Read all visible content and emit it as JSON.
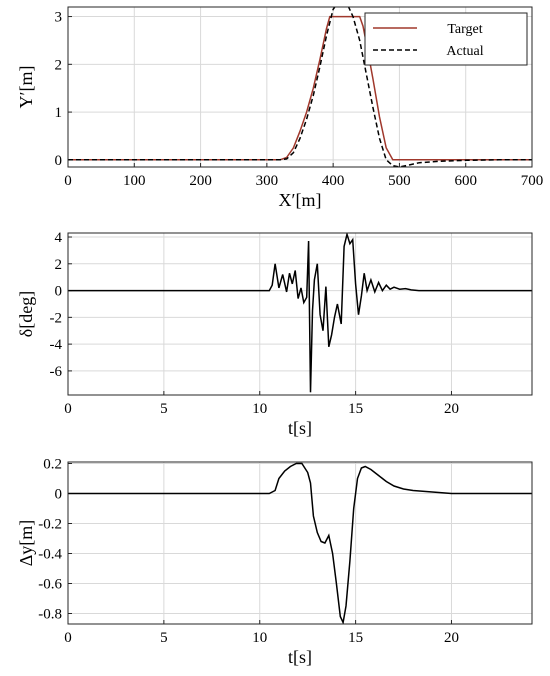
{
  "chart_data": [
    {
      "type": "line",
      "xlabel": "X′[m]",
      "ylabel": "Y′[m]",
      "xlim": [
        0,
        700
      ],
      "ylim": [
        -0.15,
        3.2
      ],
      "xticks": [
        "0",
        "100",
        "200",
        "300",
        "400",
        "500",
        "600",
        "700"
      ],
      "yticks": [
        "0",
        "1",
        "2",
        "3"
      ],
      "grid": true,
      "legend": "top-right",
      "series": [
        {
          "name": "Target",
          "color": "#a0382c",
          "style": "solid",
          "x": [
            0,
            320,
            330,
            340,
            350,
            360,
            370,
            380,
            390,
            395,
            440,
            445,
            450,
            460,
            470,
            480,
            490,
            700
          ],
          "y": [
            0,
            0,
            0.05,
            0.25,
            0.6,
            1.0,
            1.5,
            2.1,
            2.75,
            3.0,
            3.0,
            2.8,
            2.45,
            1.7,
            0.9,
            0.25,
            0,
            0
          ]
        },
        {
          "name": "Actual",
          "color": "#000000",
          "style": "dashed",
          "x": [
            0,
            320,
            330,
            340,
            350,
            360,
            370,
            380,
            390,
            400,
            410,
            420,
            430,
            440,
            450,
            460,
            470,
            480,
            490,
            500,
            510,
            530,
            560,
            600,
            650,
            700
          ],
          "y": [
            0,
            0,
            0.02,
            0.15,
            0.45,
            0.85,
            1.35,
            1.95,
            2.6,
            3.15,
            3.35,
            3.3,
            3.0,
            2.5,
            1.8,
            1.1,
            0.45,
            0.0,
            -0.12,
            -0.15,
            -0.12,
            -0.06,
            -0.03,
            -0.01,
            0,
            0
          ]
        }
      ]
    },
    {
      "type": "line",
      "xlabel": "t[s]",
      "ylabel": "δ[deg]",
      "xlim": [
        0,
        24.2
      ],
      "ylim": [
        -7.8,
        4.3
      ],
      "xticks": [
        "0",
        "5",
        "10",
        "15",
        "20"
      ],
      "yticks": [
        "4",
        "2",
        "0",
        "-2",
        "-4",
        "-6"
      ],
      "grid": true,
      "series": [
        {
          "color": "#000000",
          "style": "solid",
          "x": [
            0,
            10.5,
            10.65,
            10.8,
            11.0,
            11.2,
            11.4,
            11.55,
            11.7,
            11.85,
            12.0,
            12.15,
            12.3,
            12.45,
            12.55,
            12.65,
            12.75,
            12.85,
            13.0,
            13.15,
            13.3,
            13.45,
            13.6,
            13.75,
            13.9,
            14.05,
            14.25,
            14.4,
            14.55,
            14.7,
            14.85,
            15.0,
            15.15,
            15.3,
            15.45,
            15.6,
            15.8,
            16.0,
            16.2,
            16.4,
            16.6,
            16.8,
            17.0,
            17.3,
            17.6,
            17.9,
            18.3,
            24.2
          ],
          "y": [
            0,
            0,
            0.4,
            2.0,
            0.2,
            1.2,
            -0.1,
            1.3,
            0.5,
            1.5,
            -0.6,
            0.2,
            -0.9,
            -0.5,
            3.7,
            -7.6,
            -1.5,
            0.8,
            2.0,
            -1.8,
            -3.0,
            0.3,
            -4.2,
            -3.3,
            -2.0,
            -1.0,
            -2.5,
            3.3,
            4.2,
            3.5,
            3.8,
            0.5,
            -1.8,
            -0.4,
            1.3,
            0.0,
            0.8,
            -0.1,
            0.6,
            0.0,
            0.4,
            0.1,
            0.25,
            0.1,
            0.15,
            0.05,
            0,
            0
          ]
        }
      ]
    },
    {
      "type": "line",
      "xlabel": "t[s]",
      "ylabel": "Δy[m]",
      "xlim": [
        0,
        24.2
      ],
      "ylim": [
        -0.87,
        0.21
      ],
      "xticks": [
        "0",
        "5",
        "10",
        "15",
        "20"
      ],
      "yticks": [
        "0.2",
        "0",
        "-0.2",
        "-0.4",
        "-0.6",
        "-0.8"
      ],
      "grid": true,
      "series": [
        {
          "color": "#000000",
          "style": "solid",
          "x": [
            0,
            10.5,
            10.8,
            11.0,
            11.3,
            11.6,
            11.9,
            12.2,
            12.5,
            12.65,
            12.8,
            13.0,
            13.2,
            13.4,
            13.6,
            13.8,
            14.0,
            14.2,
            14.35,
            14.5,
            14.7,
            14.9,
            15.1,
            15.3,
            15.5,
            15.8,
            16.2,
            16.6,
            17.0,
            17.5,
            18.0,
            19.0,
            20.0,
            21.0,
            24.2
          ],
          "y": [
            0,
            0,
            0.02,
            0.1,
            0.15,
            0.18,
            0.2,
            0.2,
            0.14,
            0.07,
            -0.15,
            -0.26,
            -0.32,
            -0.33,
            -0.28,
            -0.4,
            -0.6,
            -0.82,
            -0.86,
            -0.75,
            -0.45,
            -0.1,
            0.1,
            0.17,
            0.18,
            0.16,
            0.12,
            0.08,
            0.05,
            0.03,
            0.02,
            0.01,
            0.0,
            0.0,
            0.0
          ]
        }
      ]
    }
  ]
}
